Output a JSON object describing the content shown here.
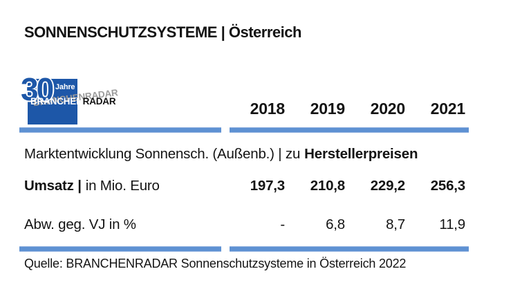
{
  "title": "SONNENSCHUTZSYSTEME | Österreich",
  "logo": {
    "number": "30",
    "years_label": "Jahre",
    "brand_part1": "BRANCHEN",
    "brand_part2": "RADAR",
    "ghost": "BRANCHENRADAR"
  },
  "colors": {
    "logo_blue": "#1D57A8",
    "accent_bar_blue": "#5E91D3",
    "text": "#141414"
  },
  "table": {
    "years": [
      "2018",
      "2019",
      "2020",
      "2021"
    ],
    "section_label_regular": "Marktentwicklung Sonnensch. (Außenb.) | zu",
    "section_label_bold": "Herstellerpreisen",
    "rows": [
      {
        "label_bold": "Umsatz |",
        "label_regular": "in Mio. Euro",
        "values": [
          "197,3",
          "210,8",
          "229,2",
          "256,3"
        ]
      },
      {
        "label_bold": "",
        "label_regular": "Abw. geg. VJ in %",
        "values": [
          "-",
          "6,8",
          "8,7",
          "11,9"
        ]
      }
    ]
  },
  "source": "Quelle: BRANCHENRADAR Sonnenschutzsysteme in Österreich 2022",
  "chart_data": {
    "type": "table",
    "title": "SONNENSCHUTZSYSTEME | Österreich",
    "subtitle": "Marktentwicklung Sonnensch. (Außenb.) | zu Herstellerpreisen",
    "categories": [
      "2018",
      "2019",
      "2020",
      "2021"
    ],
    "series": [
      {
        "name": "Umsatz | in Mio. Euro",
        "values": [
          197.3,
          210.8,
          229.2,
          256.3
        ]
      },
      {
        "name": "Abw. geg. VJ in %",
        "values": [
          null,
          6.8,
          8.7,
          11.9
        ]
      }
    ],
    "source": "Quelle: BRANCHENRADAR Sonnenschutzsysteme in Österreich 2022"
  }
}
